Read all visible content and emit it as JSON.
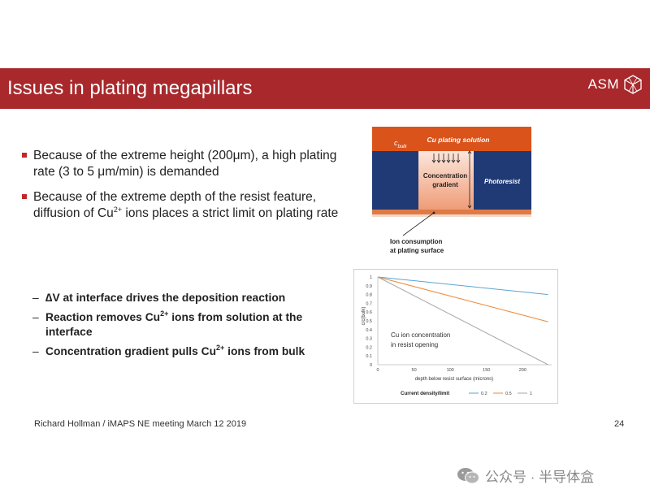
{
  "header": {
    "title": "Issues in plating megapillars",
    "logo_text": "ASM",
    "colors": {
      "banner": "#a8282b"
    }
  },
  "bullets": [
    {
      "parts": [
        "Because of the extreme height (200μm), a high plating rate (3 to 5 μm/min) is demanded"
      ]
    },
    {
      "parts": [
        "Because of the extreme depth of the resist feature, diffusion of Cu",
        "2+",
        " ions places a strict limit on plating rate"
      ]
    }
  ],
  "subitems": [
    {
      "dash": "–",
      "parts": [
        "∆V at interface drives the deposition reaction"
      ]
    },
    {
      "dash": "–",
      "parts": [
        "Reaction removes Cu",
        "2+",
        " ions from solution at the interface"
      ]
    },
    {
      "dash": "–",
      "parts": [
        "Concentration gradient pulls Cu",
        "2+",
        " ions from bulk"
      ]
    }
  ],
  "diagram": {
    "labels": {
      "c_bulk_main": "c",
      "c_bulk_sub": "bulk",
      "solution": "Cu plating solution",
      "gradient_1": "Concentration",
      "gradient_2": "gradient",
      "photoresist": "Photoresist",
      "ion_1": "Ion consumption",
      "ion_2": "at plating surface"
    },
    "colors": {
      "solution": "#d9531b",
      "resist": "#1f3a74",
      "opening": "#f6c9b4",
      "substrate": "#e07a45"
    }
  },
  "chart_data": {
    "type": "line",
    "x": [
      0,
      235
    ],
    "series": [
      {
        "name": "0.2",
        "color": "#5ba3d2",
        "values": [
          1.0,
          0.8
        ]
      },
      {
        "name": "0.5",
        "color": "#ee8a3a",
        "values": [
          1.0,
          0.49
        ]
      },
      {
        "name": "1",
        "color": "#a6a6a6",
        "values": [
          1.0,
          0.0
        ]
      }
    ],
    "xlabel": "depth below resist surface (microns)",
    "ylabel": "c/c(bulk)",
    "xticks": [
      0,
      50,
      100,
      150,
      200
    ],
    "yticks": [
      0,
      0.1,
      0.2,
      0.3,
      0.4,
      0.5,
      0.6,
      0.7,
      0.8,
      0.9,
      1
    ],
    "xlim": [
      0,
      240
    ],
    "ylim": [
      0,
      1
    ],
    "annotation_1": "Cu ion concentration",
    "annotation_2": "in resist opening",
    "legend_title": "Current density/limit",
    "legend_position": "bottom",
    "grid": false
  },
  "footer": {
    "text": "Richard Hollman / iMAPS NE meeting March 12 2019",
    "page": "24"
  },
  "watermark": {
    "text": "公众号 · 半导体盒"
  }
}
